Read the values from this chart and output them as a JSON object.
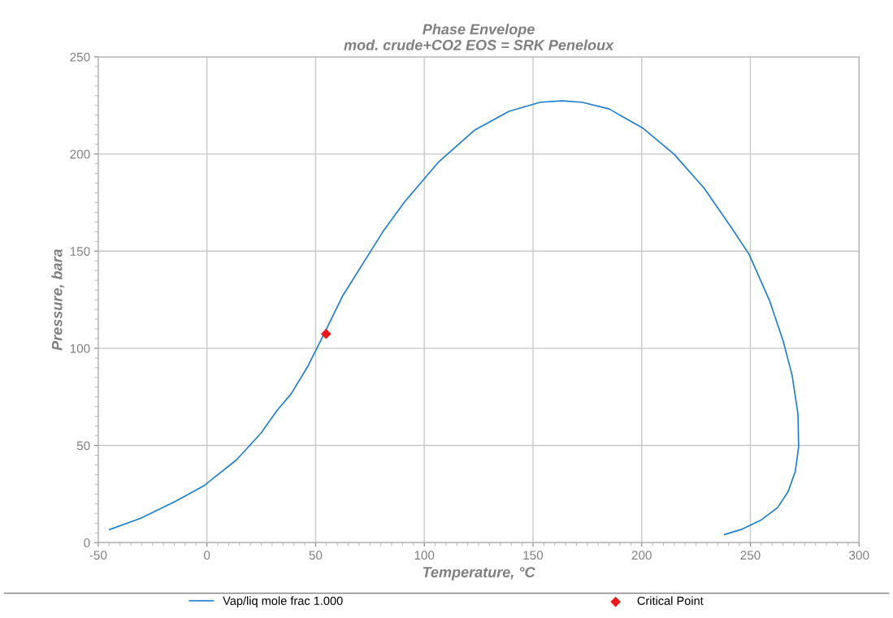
{
  "chart_data": {
    "type": "line",
    "title": "Phase Envelope",
    "subtitle": "mod. crude+CO2 EOS = SRK Peneloux",
    "xlabel": "Temperature, °C",
    "ylabel": "Pressure, bara",
    "xlim": [
      -50,
      300
    ],
    "xticks": [
      -50,
      0,
      50,
      100,
      150,
      200,
      250,
      300
    ],
    "ylim": [
      0,
      250
    ],
    "yticks": [
      0,
      50,
      100,
      150,
      200,
      250
    ],
    "grid": true,
    "legend": "bottom",
    "series": [
      {
        "name": "Vap/liq mole frac 1.000",
        "color": "#1f7fc9",
        "marker": "none",
        "x": [
          -44.8,
          -30.5,
          -14.4,
          -1.3,
          13.6,
          24.9,
          32.3,
          38.7,
          46.6,
          53.7,
          62.3,
          73.5,
          81,
          91.1,
          106.4,
          123.3,
          139,
          153.2,
          163.3,
          172.7,
          185,
          200.7,
          215,
          228.8,
          241.2,
          249.4,
          258.8,
          265.1,
          269.2,
          271.9,
          272.2,
          270.7,
          267.4,
          262.5,
          255,
          245.7,
          238.2
        ],
        "values": [
          6.7,
          12.5,
          21.3,
          29.3,
          42.6,
          56.4,
          68.1,
          76.5,
          91.1,
          107,
          126.7,
          146.7,
          160.1,
          175.6,
          195.7,
          212.4,
          222,
          226.6,
          227.4,
          226.6,
          223.2,
          213.2,
          199.8,
          182.3,
          162.2,
          148.4,
          124.6,
          103.7,
          86.1,
          66.1,
          49.3,
          36.8,
          26.3,
          18,
          11.7,
          6.7,
          4.2
        ]
      },
      {
        "name": "Critical Point",
        "color": "#e8191c",
        "type": "scatter",
        "marker": "diamond",
        "x": [
          54.8
        ],
        "values": [
          107.4
        ]
      }
    ]
  }
}
